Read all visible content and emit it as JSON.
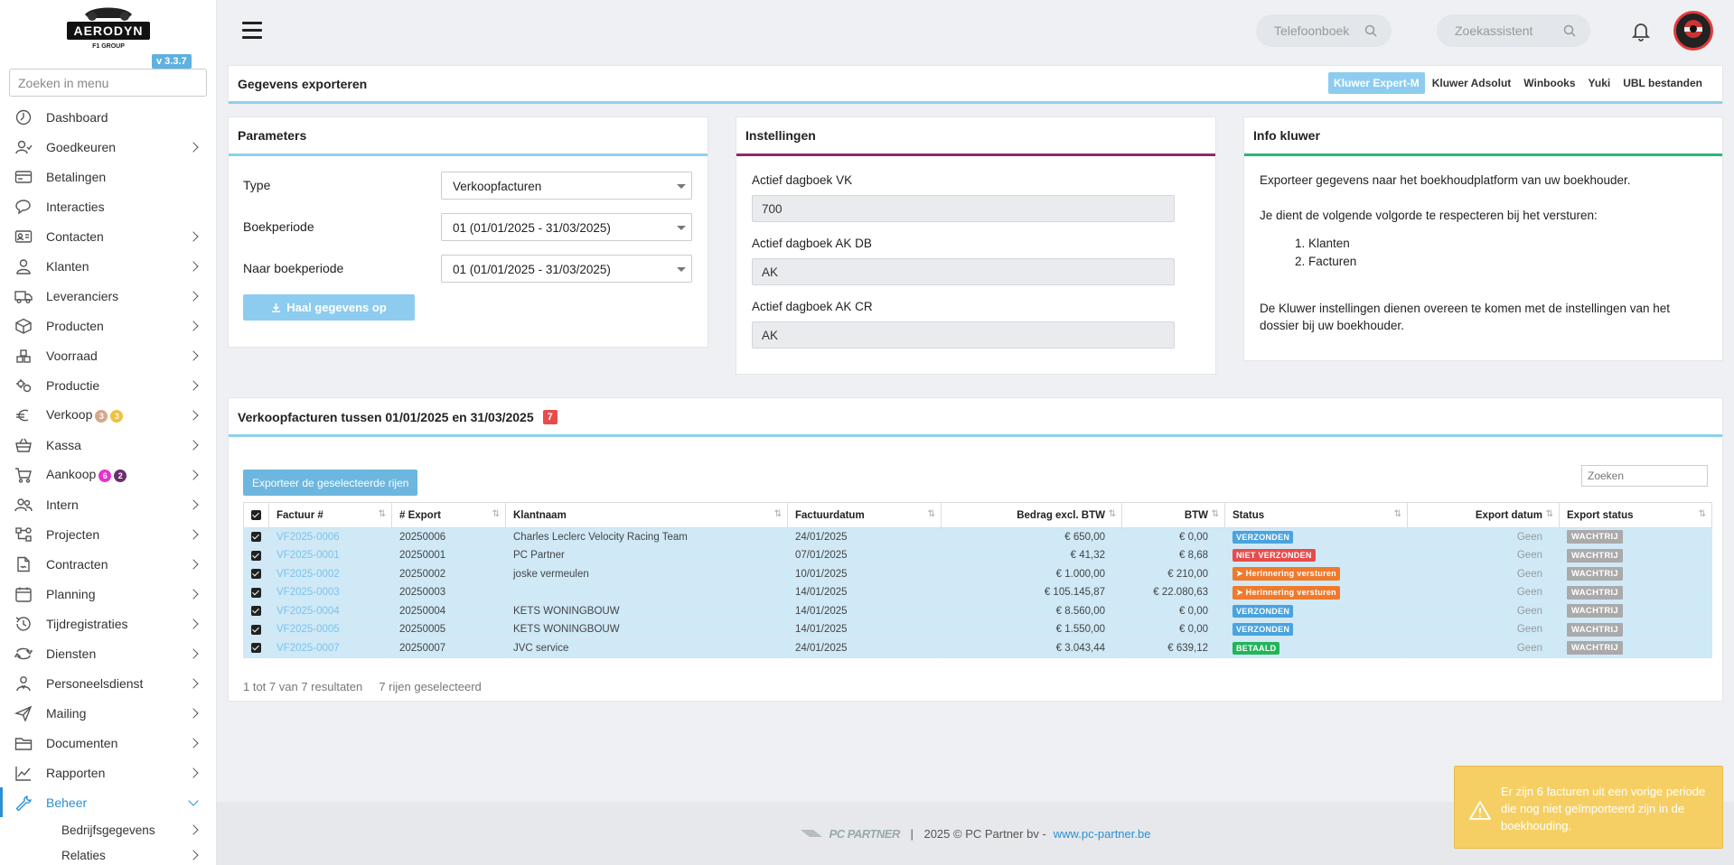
{
  "sidebar": {
    "logo_text": "AERODYN",
    "logo_sub": "F1 GROUP",
    "version": "v 3.3.7",
    "search_placeholder": "Zoeken in menu",
    "items": [
      {
        "label": "Dashboard",
        "icon": "dashboard-icon",
        "chevron": false
      },
      {
        "label": "Goedkeuren",
        "icon": "user-check-icon",
        "chevron": true
      },
      {
        "label": "Betalingen",
        "icon": "payment-icon",
        "chevron": false
      },
      {
        "label": "Interacties",
        "icon": "chat-icon",
        "chevron": false
      },
      {
        "label": "Contacten",
        "icon": "contact-card-icon",
        "chevron": true
      },
      {
        "label": "Klanten",
        "icon": "customer-icon",
        "chevron": true
      },
      {
        "label": "Leveranciers",
        "icon": "truck-icon",
        "chevron": true
      },
      {
        "label": "Producten",
        "icon": "box-icon",
        "chevron": true
      },
      {
        "label": "Voorraad",
        "icon": "stock-icon",
        "chevron": true
      },
      {
        "label": "Productie",
        "icon": "production-icon",
        "chevron": true
      },
      {
        "label": "Verkoop",
        "icon": "euro-icon",
        "chevron": true,
        "badges": [
          {
            "text": "3",
            "color": "#d6a88a"
          },
          {
            "text": "3",
            "color": "#f0c040"
          }
        ]
      },
      {
        "label": "Kassa",
        "icon": "basket-icon",
        "chevron": true
      },
      {
        "label": "Aankoop",
        "icon": "cart-icon",
        "chevron": true,
        "badges": [
          {
            "text": "6",
            "color": "#e335c9"
          },
          {
            "text": "2",
            "color": "#6b2f6b"
          }
        ]
      },
      {
        "label": "Intern",
        "icon": "team-icon",
        "chevron": true
      },
      {
        "label": "Projecten",
        "icon": "project-icon",
        "chevron": true
      },
      {
        "label": "Contracten",
        "icon": "contract-icon",
        "chevron": true
      },
      {
        "label": "Planning",
        "icon": "calendar-icon",
        "chevron": true
      },
      {
        "label": "Tijdregistraties",
        "icon": "time-icon",
        "chevron": true
      },
      {
        "label": "Diensten",
        "icon": "services-icon",
        "chevron": true
      },
      {
        "label": "Personeelsdienst",
        "icon": "staff-icon",
        "chevron": true
      },
      {
        "label": "Mailing",
        "icon": "send-icon",
        "chevron": true
      },
      {
        "label": "Documenten",
        "icon": "folder-icon",
        "chevron": true
      },
      {
        "label": "Rapporten",
        "icon": "chart-icon",
        "chevron": true
      },
      {
        "label": "Beheer",
        "icon": "wrench-icon",
        "chevron": true,
        "active": true
      }
    ],
    "sub_items": [
      {
        "label": "Bedrijfsgegevens"
      },
      {
        "label": "Relaties"
      }
    ]
  },
  "topbar": {
    "phonebook_placeholder": "Telefoonboek",
    "assistant_placeholder": "Zoekassistent"
  },
  "export_header": {
    "title": "Gegevens exporteren",
    "tabs": [
      "Kluwer Expert-M",
      "Kluwer Adsolut",
      "Winbooks",
      "Yuki",
      "UBL bestanden"
    ],
    "active_tab": 0,
    "accent": "#8dd1ea"
  },
  "parameters": {
    "title": "Parameters",
    "accent": "#8dd1ea",
    "type_label": "Type",
    "type_value": "Verkoopfacturen",
    "period_label": "Boekperiode",
    "period_value": "01 (01/01/2025 - 31/03/2025)",
    "to_period_label": "Naar boekperiode",
    "to_period_value": "01 (01/01/2025 - 31/03/2025)",
    "fetch_button": "Haal gegevens op"
  },
  "settings": {
    "title": "Instellingen",
    "accent": "#8b2a6e",
    "fields": [
      {
        "label": "Actief dagboek VK",
        "value": "700"
      },
      {
        "label": "Actief dagboek AK DB",
        "value": "AK"
      },
      {
        "label": "Actief dagboek AK CR",
        "value": "AK"
      }
    ]
  },
  "info": {
    "title": "Info kluwer",
    "accent": "#2bb673",
    "line1": "Exporteer gegevens naar het boekhoudplatform van uw boekhouder.",
    "line2": "Je dient de volgende volgorde te respecteren bij het versturen:",
    "steps": [
      "Klanten",
      "Facturen"
    ],
    "line3": "De Kluwer instellingen dienen overeen te komen met de instellingen van het dossier bij uw boekhouder."
  },
  "invoices": {
    "title": "Verkoopfacturen tussen 01/01/2025 en 31/03/2025",
    "count": "7",
    "accent": "#8dd1ea",
    "export_button": "Exporteer de geselecteerde rijen",
    "search_placeholder": "Zoeken",
    "columns": [
      "Factuur #",
      "# Export",
      "Klantnaam",
      "Factuurdatum",
      "Bedrag excl. BTW",
      "BTW",
      "Status",
      "Export datum",
      "Export status"
    ],
    "rows": [
      {
        "invoice": "VF2025-0006",
        "export": "20250006",
        "customer": "Charles Leclerc Velocity Racing Team",
        "date": "24/01/2025",
        "amount": "€ 650,00",
        "vat": "€ 0,00",
        "status": "VERZONDEN",
        "status_color": "#4aa3df",
        "status_arrow": false,
        "export_date": "Geen",
        "export_status": "WACHTRIJ"
      },
      {
        "invoice": "VF2025-0001",
        "export": "20250001",
        "customer": "PC Partner",
        "date": "07/01/2025",
        "amount": "€ 41,32",
        "vat": "€ 8,68",
        "status": "NIET VERZONDEN",
        "status_color": "#e74c4c",
        "status_arrow": false,
        "export_date": "Geen",
        "export_status": "WACHTRIJ"
      },
      {
        "invoice": "VF2025-0002",
        "export": "20250002",
        "customer": "joske vermeulen",
        "date": "10/01/2025",
        "amount": "€ 1.000,00",
        "vat": "€ 210,00",
        "status": "Herinnering versturen",
        "status_color": "#f07a2c",
        "status_arrow": true,
        "export_date": "Geen",
        "export_status": "WACHTRIJ"
      },
      {
        "invoice": "VF2025-0003",
        "export": "20250003",
        "customer": "",
        "date": "14/01/2025",
        "amount": "€ 105.145,87",
        "vat": "€ 22.080,63",
        "status": "Herinnering versturen",
        "status_color": "#f07a2c",
        "status_arrow": true,
        "export_date": "Geen",
        "export_status": "WACHTRIJ"
      },
      {
        "invoice": "VF2025-0004",
        "export": "20250004",
        "customer": "KETS WONINGBOUW",
        "date": "14/01/2025",
        "amount": "€ 8.560,00",
        "vat": "€ 0,00",
        "status": "VERZONDEN",
        "status_color": "#4aa3df",
        "status_arrow": false,
        "export_date": "Geen",
        "export_status": "WACHTRIJ"
      },
      {
        "invoice": "VF2025-0005",
        "export": "20250005",
        "customer": "KETS WONINGBOUW",
        "date": "14/01/2025",
        "amount": "€ 1.550,00",
        "vat": "€ 0,00",
        "status": "VERZONDEN",
        "status_color": "#4aa3df",
        "status_arrow": false,
        "export_date": "Geen",
        "export_status": "WACHTRIJ"
      },
      {
        "invoice": "VF2025-0007",
        "export": "20250007",
        "customer": "JVC service",
        "date": "24/01/2025",
        "amount": "€ 3.043,44",
        "vat": "€ 639,12",
        "status": "BETAALD",
        "status_color": "#23b45b",
        "status_arrow": false,
        "export_date": "Geen",
        "export_status": "WACHTRIJ"
      }
    ],
    "footer_results": "1 tot 7 van 7 resultaten",
    "footer_selected": "7 rijen geselecteerd"
  },
  "footer": {
    "logo_text": "PC PARTNER",
    "copyright": "2025 © PC Partner bv - ",
    "link": "www.pc-partner.be"
  },
  "toast": {
    "message": "Er zijn 6 facturen uit een vorige periode die nog niet geïmporteerd zijn in de boekhouding."
  }
}
